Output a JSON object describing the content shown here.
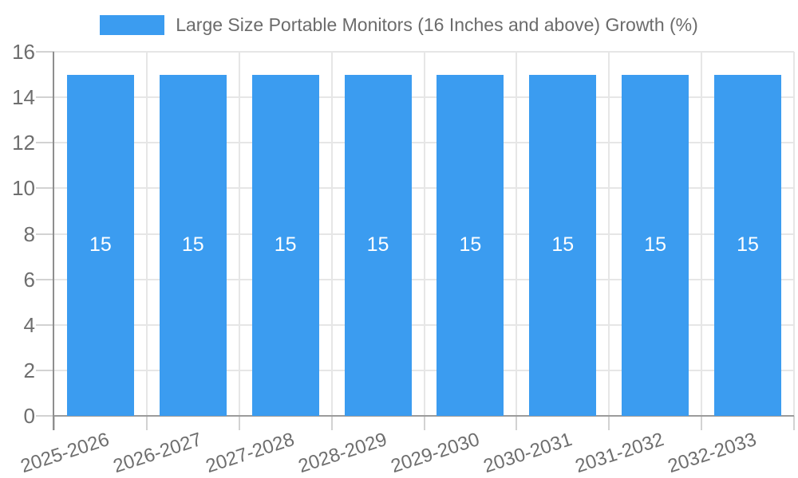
{
  "legend": {
    "label": "Large Size Portable Monitors (16 Inches and above) Growth (%)"
  },
  "chart_data": {
    "type": "bar",
    "title": "",
    "xlabel": "",
    "ylabel": "",
    "categories": [
      "2025-2026",
      "2026-2027",
      "2027-2028",
      "2028-2029",
      "2029-2030",
      "2030-2031",
      "2031-2032",
      "2032-2033"
    ],
    "series": [
      {
        "name": "Large Size Portable Monitors (16 Inches and above) Growth (%)",
        "values": [
          15,
          15,
          15,
          15,
          15,
          15,
          15,
          15
        ]
      }
    ],
    "value_labels": [
      "15",
      "15",
      "15",
      "15",
      "15",
      "15",
      "15",
      "15"
    ],
    "ylim": [
      0,
      16
    ],
    "yticks": [
      0,
      2,
      4,
      6,
      8,
      10,
      12,
      14,
      16
    ],
    "grid": true,
    "legend_position": "top",
    "colors": {
      "bar": "#3B9CF0",
      "value_label": "#ffffff",
      "axis_text": "#6e6e6e",
      "gridline": "#e6e6e6",
      "axis_line": "#8e8e8e",
      "tick": "#d2d2d2",
      "background": "#ffffff"
    }
  }
}
